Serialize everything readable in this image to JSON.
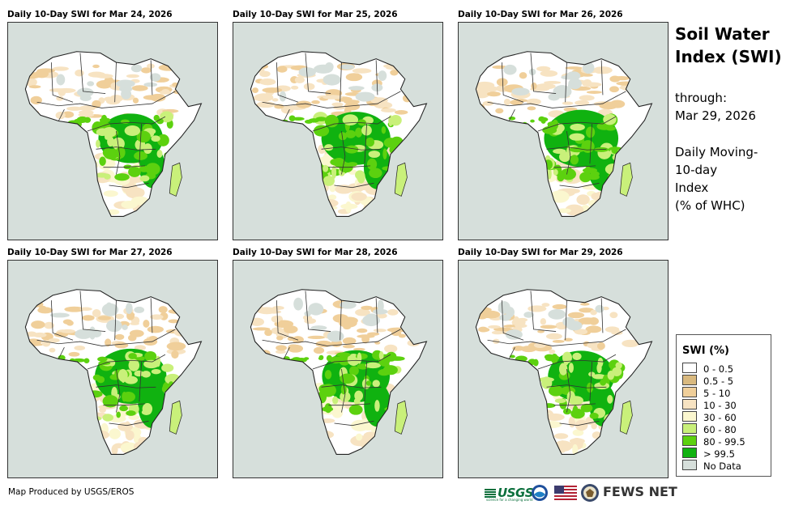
{
  "panels": [
    {
      "title": "Daily 10-Day SWI for Mar 24, 2026",
      "wet_level": 0.55
    },
    {
      "title": "Daily 10-Day SWI for Mar 25, 2026",
      "wet_level": 0.62
    },
    {
      "title": "Daily 10-Day SWI for Mar 26, 2026",
      "wet_level": 0.7
    },
    {
      "title": "Daily 10-Day SWI for Mar 27, 2026",
      "wet_level": 0.66
    },
    {
      "title": "Daily 10-Day SWI for Mar 28, 2026",
      "wet_level": 0.6
    },
    {
      "title": "Daily 10-Day SWI for Mar 29, 2026",
      "wet_level": 0.58
    }
  ],
  "sidebar": {
    "title": "Soil Water Index (SWI)",
    "through_label": "through:",
    "through_date": "Mar 29, 2026",
    "desc_line1": "Daily Moving-",
    "desc_line2": "10-day",
    "desc_line3": "Index",
    "desc_line4": "(% of WHC)"
  },
  "legend": {
    "title": "SWI (%)",
    "items": [
      {
        "label": "0 - 0.5",
        "color": "#ffffff"
      },
      {
        "label": "0.5 - 5",
        "color": "#d9b97f"
      },
      {
        "label": "5 - 10",
        "color": "#f0cf9a"
      },
      {
        "label": "10 - 30",
        "color": "#f7e3c2"
      },
      {
        "label": "30 - 60",
        "color": "#fbf7cf"
      },
      {
        "label": "60 - 80",
        "color": "#c9f07a"
      },
      {
        "label": "80 - 99.5",
        "color": "#5cd10f"
      },
      {
        "label": "> 99.5",
        "color": "#10b210"
      },
      {
        "label": "No Data",
        "color": "#d6dfdb"
      }
    ]
  },
  "footer": {
    "credit": "Map Produced by USGS/EROS",
    "usgs": "USGS",
    "usgs_tagline": "science for a changing world",
    "fews": "FEWS NET"
  }
}
